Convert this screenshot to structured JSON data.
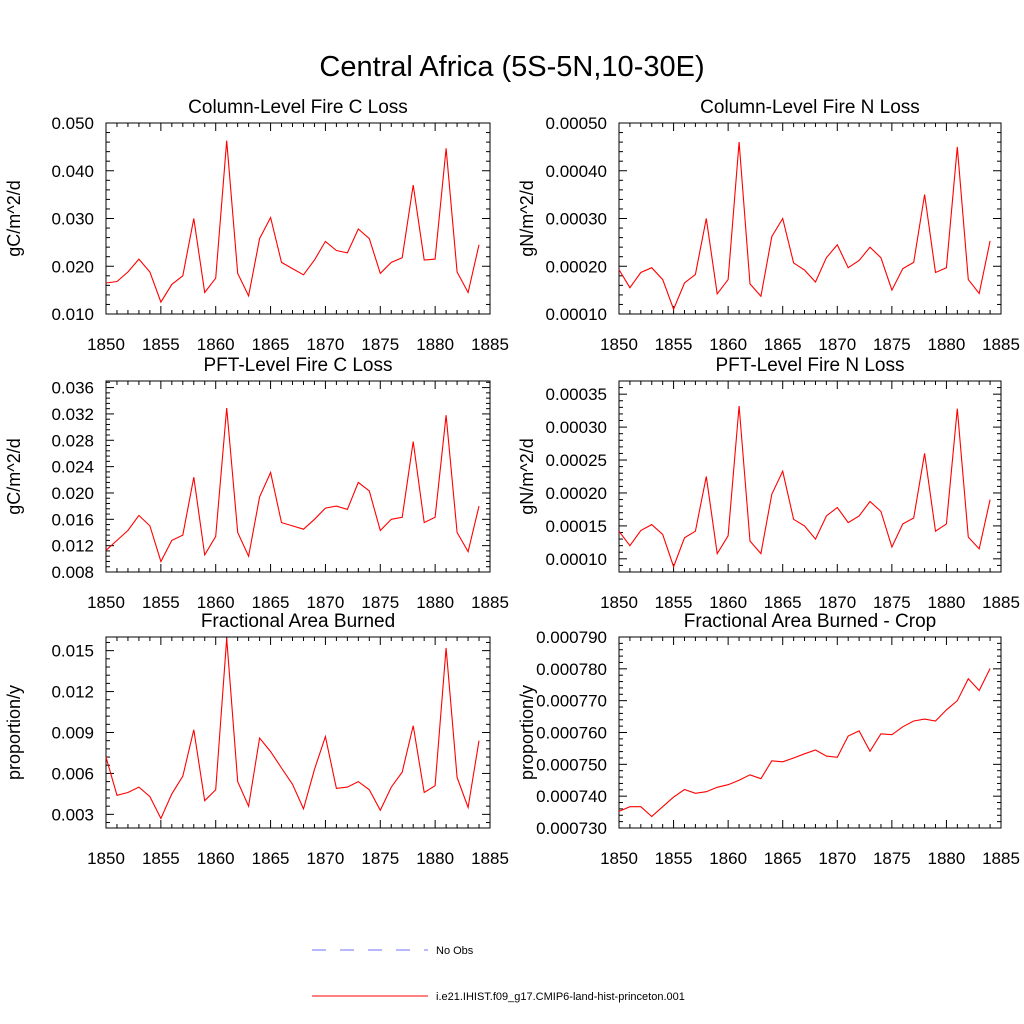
{
  "figure": {
    "title": "Central Africa (5S-5N,10-30E)"
  },
  "legend": {
    "obs_label": "No Obs",
    "model_label": "i.e21.IHIST.f09_g17.CMIP6-land-hist-princeton.001",
    "obs_color": "#7070ff",
    "model_color": "#ff0000"
  },
  "chart_data": [
    {
      "type": "line",
      "title": "Column-Level Fire C Loss",
      "xlabel": "",
      "ylabel": "gC/m^2/d",
      "xlim": [
        1850,
        1885
      ],
      "ylim": [
        0.01,
        0.05
      ],
      "xticks": [
        "1850",
        "1855",
        "1860",
        "1865",
        "1870",
        "1875",
        "1880",
        "1885"
      ],
      "yticks": [
        "0.010",
        "0.020",
        "0.030",
        "0.040",
        "0.050"
      ],
      "x": [
        1850,
        1851,
        1852,
        1853,
        1854,
        1855,
        1856,
        1857,
        1858,
        1859,
        1860,
        1861,
        1862,
        1863,
        1864,
        1865,
        1866,
        1867,
        1868,
        1869,
        1870,
        1871,
        1872,
        1873,
        1874,
        1875,
        1876,
        1877,
        1878,
        1879,
        1880,
        1881,
        1882,
        1883,
        1884
      ],
      "series": [
        {
          "values": [
            0.0165,
            0.0168,
            0.0188,
            0.0215,
            0.0188,
            0.0125,
            0.0162,
            0.018,
            0.03,
            0.0145,
            0.0175,
            0.0463,
            0.0185,
            0.0138,
            0.0258,
            0.0302,
            0.0208,
            0.0195,
            0.0182,
            0.0213,
            0.0252,
            0.0233,
            0.0228,
            0.0278,
            0.0258,
            0.0185,
            0.0208,
            0.0218,
            0.037,
            0.0213,
            0.0215,
            0.0447,
            0.0188,
            0.0145,
            0.0245
          ]
        }
      ]
    },
    {
      "type": "line",
      "title": "Column-Level Fire N Loss",
      "xlabel": "",
      "ylabel": "gN/m^2/d",
      "xlim": [
        1850,
        1885
      ],
      "ylim": [
        0.0001,
        0.0005
      ],
      "xticks": [
        "1850",
        "1855",
        "1860",
        "1865",
        "1870",
        "1875",
        "1880",
        "1885"
      ],
      "yticks": [
        "0.00010",
        "0.00020",
        "0.00030",
        "0.00040",
        "0.00050"
      ],
      "x": [
        1850,
        1851,
        1852,
        1853,
        1854,
        1855,
        1856,
        1857,
        1858,
        1859,
        1860,
        1861,
        1862,
        1863,
        1864,
        1865,
        1866,
        1867,
        1868,
        1869,
        1870,
        1871,
        1872,
        1873,
        1874,
        1875,
        1876,
        1877,
        1878,
        1879,
        1880,
        1881,
        1882,
        1883,
        1884
      ],
      "series": [
        {
          "values": [
            0.000193,
            0.000155,
            0.000187,
            0.000197,
            0.000172,
            0.00011,
            0.000165,
            0.000183,
            0.0003,
            0.000142,
            0.000172,
            0.00046,
            0.000163,
            0.000137,
            0.000262,
            0.0003,
            0.000207,
            0.000192,
            0.000167,
            0.000218,
            0.000245,
            0.000197,
            0.000212,
            0.00024,
            0.000218,
            0.00015,
            0.000195,
            0.000208,
            0.00035,
            0.000187,
            0.000197,
            0.00045,
            0.000172,
            0.000143,
            0.000253
          ]
        }
      ]
    },
    {
      "type": "line",
      "title": "PFT-Level Fire C Loss",
      "xlabel": "",
      "ylabel": "gC/m^2/d",
      "xlim": [
        1850,
        1885
      ],
      "ylim": [
        0.008,
        0.037
      ],
      "xticks": [
        "1850",
        "1855",
        "1860",
        "1865",
        "1870",
        "1875",
        "1880",
        "1885"
      ],
      "yticks": [
        "0.008",
        "0.012",
        "0.016",
        "0.020",
        "0.024",
        "0.028",
        "0.032",
        "0.036"
      ],
      "x": [
        1850,
        1851,
        1852,
        1853,
        1854,
        1855,
        1856,
        1857,
        1858,
        1859,
        1860,
        1861,
        1862,
        1863,
        1864,
        1865,
        1866,
        1867,
        1868,
        1869,
        1870,
        1871,
        1872,
        1873,
        1874,
        1875,
        1876,
        1877,
        1878,
        1879,
        1880,
        1881,
        1882,
        1883,
        1884
      ],
      "series": [
        {
          "values": [
            0.0113,
            0.0128,
            0.0143,
            0.0166,
            0.015,
            0.0096,
            0.0128,
            0.0136,
            0.0224,
            0.0106,
            0.0134,
            0.0329,
            0.014,
            0.0104,
            0.0194,
            0.0231,
            0.0155,
            0.015,
            0.0145,
            0.016,
            0.0177,
            0.018,
            0.0175,
            0.0216,
            0.0203,
            0.0143,
            0.016,
            0.0163,
            0.0278,
            0.0155,
            0.0163,
            0.0318,
            0.014,
            0.0111,
            0.018
          ]
        }
      ]
    },
    {
      "type": "line",
      "title": "PFT-Level Fire N Loss",
      "xlabel": "",
      "ylabel": "gN/m^2/d",
      "xlim": [
        1850,
        1885
      ],
      "ylim": [
        8e-05,
        0.00037
      ],
      "xticks": [
        "1850",
        "1855",
        "1860",
        "1865",
        "1870",
        "1875",
        "1880",
        "1885"
      ],
      "yticks": [
        "0.00010",
        "0.00015",
        "0.00020",
        "0.00025",
        "0.00030",
        "0.00035"
      ],
      "x": [
        1850,
        1851,
        1852,
        1853,
        1854,
        1855,
        1856,
        1857,
        1858,
        1859,
        1860,
        1861,
        1862,
        1863,
        1864,
        1865,
        1866,
        1867,
        1868,
        1869,
        1870,
        1871,
        1872,
        1873,
        1874,
        1875,
        1876,
        1877,
        1878,
        1879,
        1880,
        1881,
        1882,
        1883,
        1884
      ],
      "series": [
        {
          "values": [
            0.000142,
            0.00012,
            0.000143,
            0.000152,
            0.000137,
            8.8e-05,
            0.000132,
            0.000142,
            0.000225,
            0.000108,
            0.000135,
            0.000332,
            0.000127,
            0.000108,
            0.000198,
            0.000233,
            0.00016,
            0.00015,
            0.00013,
            0.000165,
            0.000178,
            0.000155,
            0.000165,
            0.000187,
            0.000172,
            0.000118,
            0.000153,
            0.000162,
            0.00026,
            0.000142,
            0.000153,
            0.000328,
            0.000133,
            0.000115,
            0.00019
          ]
        }
      ]
    },
    {
      "type": "line",
      "title": "Fractional Area Burned",
      "xlabel": "",
      "ylabel": "proportion/y",
      "xlim": [
        1850,
        1885
      ],
      "ylim": [
        0.002,
        0.016
      ],
      "xticks": [
        "1850",
        "1855",
        "1860",
        "1865",
        "1870",
        "1875",
        "1880",
        "1885"
      ],
      "yticks": [
        "0.003",
        "0.006",
        "0.009",
        "0.012",
        "0.015"
      ],
      "x": [
        1850,
        1851,
        1852,
        1853,
        1854,
        1855,
        1856,
        1857,
        1858,
        1859,
        1860,
        1861,
        1862,
        1863,
        1864,
        1865,
        1866,
        1867,
        1868,
        1869,
        1870,
        1871,
        1872,
        1873,
        1874,
        1875,
        1876,
        1877,
        1878,
        1879,
        1880,
        1881,
        1882,
        1883,
        1884
      ],
      "series": [
        {
          "values": [
            0.0072,
            0.0044,
            0.0046,
            0.005,
            0.0043,
            0.0027,
            0.0045,
            0.0058,
            0.0092,
            0.004,
            0.0048,
            0.0159,
            0.0054,
            0.0036,
            0.0086,
            0.0076,
            0.0064,
            0.0052,
            0.0034,
            0.0063,
            0.0087,
            0.0049,
            0.005,
            0.0054,
            0.0048,
            0.0033,
            0.005,
            0.0061,
            0.0095,
            0.0046,
            0.0051,
            0.0152,
            0.0057,
            0.0035,
            0.0084
          ]
        }
      ]
    },
    {
      "type": "line",
      "title": "Fractional Area Burned - Crop",
      "xlabel": "",
      "ylabel": "proportion/y",
      "xlim": [
        1850,
        1885
      ],
      "ylim": [
        0.00073,
        0.00079
      ],
      "xticks": [
        "1850",
        "1855",
        "1860",
        "1865",
        "1870",
        "1875",
        "1880",
        "1885"
      ],
      "yticks": [
        "0.000730",
        "0.000740",
        "0.000750",
        "0.000760",
        "0.000770",
        "0.000780",
        "0.000790"
      ],
      "x": [
        1850,
        1851,
        1852,
        1853,
        1854,
        1855,
        1856,
        1857,
        1858,
        1859,
        1860,
        1861,
        1862,
        1863,
        1864,
        1865,
        1866,
        1867,
        1868,
        1869,
        1870,
        1871,
        1872,
        1873,
        1874,
        1875,
        1876,
        1877,
        1878,
        1879,
        1880,
        1881,
        1882,
        1883,
        1884
      ],
      "series": [
        {
          "values": [
            0.0007352,
            0.0007367,
            0.0007367,
            0.0007336,
            0.0007367,
            0.0007397,
            0.0007421,
            0.0007409,
            0.0007414,
            0.0007428,
            0.0007436,
            0.000745,
            0.0007467,
            0.0007455,
            0.0007511,
            0.0007508,
            0.000752,
            0.0007533,
            0.0007545,
            0.0007526,
            0.0007522,
            0.0007589,
            0.0007605,
            0.0007541,
            0.0007596,
            0.0007593,
            0.0007618,
            0.0007636,
            0.0007642,
            0.0007636,
            0.0007671,
            0.00077,
            0.0007769,
            0.0007732,
            0.0007801
          ]
        }
      ]
    }
  ]
}
